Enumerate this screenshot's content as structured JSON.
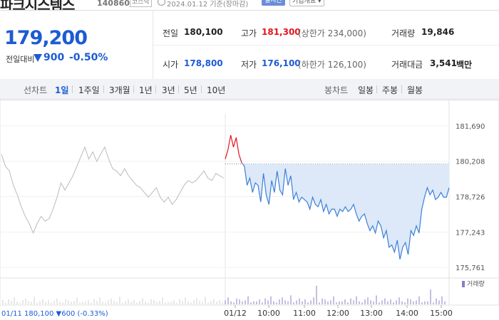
{
  "header": {
    "stock_name": "파크시스템스",
    "code": "140860",
    "market": "코스닥",
    "date_text": "2024.01.12 기준(장마감)",
    "notice_button": "실시간",
    "company_button": "기업개요 ▾"
  },
  "quote": {
    "price": "179,200",
    "change_label": "전일대비",
    "change_value": "900",
    "change_pct": "-0.50%",
    "prev_close_label": "전일",
    "prev_close": "180,100",
    "high_label": "고가",
    "high": "181,300",
    "upper_limit": "(상한가 234,000)",
    "volume_label": "거래량",
    "volume": "19,846",
    "open_label": "시가",
    "open": "178,800",
    "low_label": "저가",
    "low": "176,100",
    "lower_limit": "(하한가 126,100)",
    "amount_label": "거래대금",
    "amount": "3,541",
    "amount_unit": "백만"
  },
  "periods": {
    "label": "선차트",
    "items": [
      "1일",
      "1주일",
      "3개월",
      "1년",
      "3년",
      "5년",
      "10년"
    ],
    "active": "1일",
    "candle_label": "봉차트",
    "candle_items": [
      "일봉",
      "주봉",
      "월봉"
    ]
  },
  "colors": {
    "accent": "#1c5bd4",
    "up": "#e3141f",
    "line": "#3d7fd6",
    "fill": "#dde9f8",
    "prev_line": "#bbbbbb",
    "volume": "#8e7cc3"
  },
  "chart_data": {
    "type": "line",
    "y_ticks": [
      "181,690",
      "180,208",
      "178,726",
      "177,243",
      "175,761"
    ],
    "y_tick_values": [
      181690,
      180208,
      178726,
      177243,
      175761
    ],
    "reference_price": 180100,
    "x_ticks": [
      "01/12",
      "10:00",
      "11:00",
      "12:00",
      "13:00",
      "14:00",
      "15:00"
    ],
    "prev_day_footer": "01/11  180,100 ▼600 (-0.33%)",
    "volume_label": "거래량",
    "series": [
      {
        "values": [
          180300,
          180700,
          181300,
          180800,
          181200,
          180500,
          180150,
          180000,
          179200,
          179500,
          178900,
          179300,
          179200,
          178500,
          179700,
          178800,
          178400,
          179400,
          178900,
          179800,
          179000,
          178800,
          179900,
          179200,
          179600,
          178600,
          178900,
          178500,
          178700,
          178600,
          178500,
          178200,
          178700,
          178400,
          178300,
          178600,
          178100,
          178400,
          178000,
          178200,
          178200,
          177900,
          178200,
          178100,
          178300,
          178100,
          178200,
          178400,
          178000,
          177700,
          177900,
          178000,
          177600,
          177300,
          177500,
          177200,
          177700,
          177500,
          177000,
          177300,
          176600,
          176700,
          176400,
          176900,
          176100,
          176600,
          176800,
          176300,
          177300,
          177100,
          177500,
          177200,
          178200,
          178700,
          179100,
          178800,
          179000,
          178600,
          178700,
          178900,
          178700,
          178700,
          179100
        ]
      },
      {
        "values": [
          180500,
          180000,
          179800,
          179200,
          178800,
          178300,
          177900,
          177600,
          177200,
          177600,
          177900,
          177700,
          177800,
          178200,
          178700,
          179300,
          179000,
          179300,
          179600,
          180000,
          180400,
          180800,
          180300,
          180600,
          180200,
          180500,
          180800,
          180300,
          179900,
          179800,
          179600,
          179900,
          179600,
          179400,
          179200,
          179100,
          178900,
          178700,
          178900,
          179100,
          178700,
          178500,
          178700,
          178400,
          178600,
          178900,
          179200,
          179400,
          179300,
          179400,
          179600,
          179800,
          179500,
          179400,
          179700,
          179600,
          179500
        ]
      }
    ]
  }
}
